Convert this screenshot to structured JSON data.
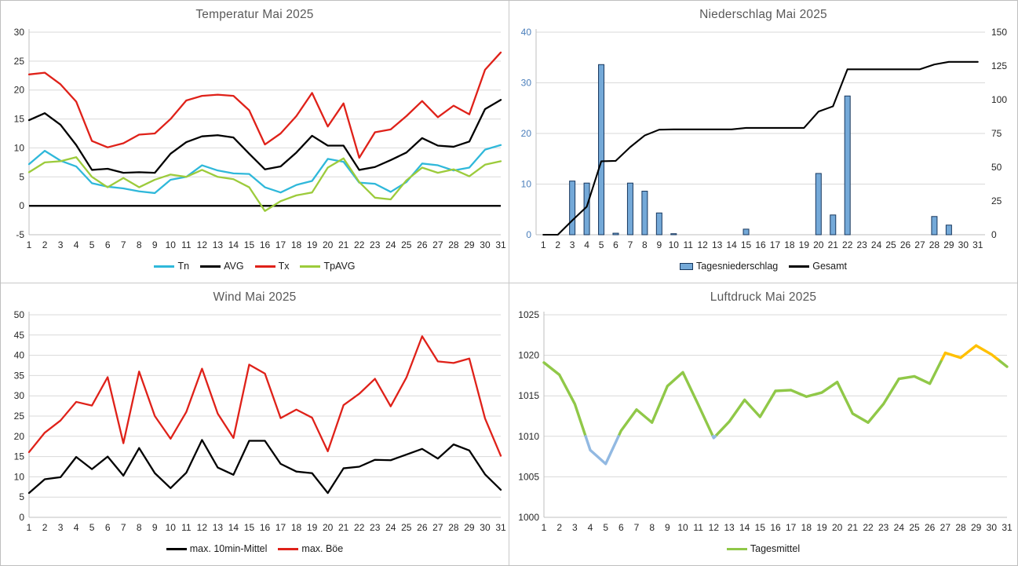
{
  "chart_data": [
    {
      "id": "temperatur",
      "type": "line",
      "title": "Temperatur Mai 2025",
      "categories": [
        1,
        2,
        3,
        4,
        5,
        6,
        7,
        8,
        9,
        10,
        11,
        12,
        13,
        14,
        15,
        16,
        17,
        18,
        19,
        20,
        21,
        22,
        23,
        24,
        25,
        26,
        27,
        28,
        29,
        30,
        31
      ],
      "ylim": [
        -5,
        30
      ],
      "yticks": [
        -5,
        0,
        5,
        10,
        15,
        20,
        25,
        30
      ],
      "x_on_ticks": true,
      "zero_line": true,
      "grid": true,
      "legend_position": "bottom",
      "series": [
        {
          "name": "Tn",
          "type": "line",
          "color": "#2FB8DA",
          "values": [
            7.2,
            9.5,
            7.8,
            6.8,
            3.9,
            3.3,
            3.0,
            2.5,
            2.2,
            4.5,
            5.0,
            7.0,
            6.1,
            5.6,
            5.5,
            3.2,
            2.3,
            3.6,
            4.3,
            8.1,
            7.6,
            4.0,
            3.8,
            2.4,
            4.1,
            7.3,
            7.0,
            6.1,
            6.6,
            9.7,
            10.5
          ]
        },
        {
          "name": "AVG",
          "type": "line",
          "color": "#000000",
          "values": [
            14.8,
            16.0,
            14.0,
            10.5,
            6.2,
            6.4,
            5.7,
            5.8,
            5.7,
            9.0,
            11.0,
            12.0,
            12.2,
            11.8,
            9.0,
            6.3,
            6.8,
            9.2,
            12.1,
            10.4,
            10.4,
            6.2,
            6.7,
            7.9,
            9.2,
            11.7,
            10.4,
            10.2,
            11.1,
            16.7,
            18.3
          ]
        },
        {
          "name": "Tx",
          "type": "line",
          "color": "#DF2119",
          "values": [
            22.7,
            23.0,
            21.0,
            18.0,
            11.2,
            10.1,
            10.8,
            12.3,
            12.5,
            15.0,
            18.2,
            19.0,
            19.2,
            19.0,
            16.5,
            10.6,
            12.5,
            15.5,
            19.5,
            13.7,
            17.7,
            8.3,
            12.7,
            13.2,
            15.5,
            18.1,
            15.3,
            17.3,
            15.8,
            23.5,
            26.5
          ]
        },
        {
          "name": "TpAVG",
          "type": "line",
          "color": "#9CCB3B",
          "values": [
            5.8,
            7.5,
            7.7,
            8.4,
            5.0,
            3.2,
            4.8,
            3.2,
            4.5,
            5.4,
            5.0,
            6.2,
            5.0,
            4.6,
            3.2,
            -0.9,
            0.8,
            1.8,
            2.3,
            6.6,
            8.2,
            4.1,
            1.4,
            1.1,
            4.4,
            6.6,
            5.7,
            6.3,
            5.1,
            7.1,
            7.7
          ]
        }
      ]
    },
    {
      "id": "niederschlag",
      "type": "combo",
      "title": "Niederschlag Mai 2025",
      "categories": [
        1,
        2,
        3,
        4,
        5,
        6,
        7,
        8,
        9,
        10,
        11,
        12,
        13,
        14,
        15,
        16,
        17,
        18,
        19,
        20,
        21,
        22,
        23,
        24,
        25,
        26,
        27,
        28,
        29,
        30,
        31
      ],
      "ylim": [
        0,
        40
      ],
      "yticks": [
        0,
        10,
        20,
        30,
        40
      ],
      "ytick_color": "#4A7EBB",
      "y2lim": [
        0,
        150
      ],
      "y2ticks": [
        0,
        25,
        50,
        75,
        100,
        125,
        150
      ],
      "x_on_ticks": false,
      "grid": true,
      "legend_position": "bottom",
      "series": [
        {
          "name": "Tagesniederschlag",
          "type": "bar",
          "color": "#74A9D8",
          "border": "#17375E",
          "values": [
            0,
            0,
            10.6,
            10.2,
            33.6,
            0.3,
            10.2,
            8.6,
            4.3,
            0.2,
            0,
            0,
            0,
            0,
            1.1,
            0,
            0,
            0,
            0,
            12.1,
            3.9,
            27.4,
            0,
            0,
            0,
            0,
            0,
            3.6,
            1.9,
            0,
            0
          ]
        },
        {
          "name": "Gesamt",
          "type": "line",
          "color": "#000000",
          "axis": "right",
          "values": [
            0,
            0,
            10.6,
            20.8,
            54.4,
            54.7,
            64.9,
            73.5,
            77.8,
            78.0,
            78.0,
            78.0,
            78.0,
            78.0,
            79.1,
            79.1,
            79.1,
            79.1,
            79.1,
            91.2,
            95.1,
            122.5,
            122.5,
            122.5,
            122.5,
            122.5,
            122.5,
            126.1,
            128.0,
            128.0,
            128.0
          ]
        }
      ]
    },
    {
      "id": "wind",
      "type": "line",
      "title": "Wind Mai 2025",
      "categories": [
        1,
        2,
        3,
        4,
        5,
        6,
        7,
        8,
        9,
        10,
        11,
        12,
        13,
        14,
        15,
        16,
        17,
        18,
        19,
        20,
        21,
        22,
        23,
        24,
        25,
        26,
        27,
        28,
        29,
        30,
        31
      ],
      "ylim": [
        0,
        50
      ],
      "yticks": [
        0,
        5,
        10,
        15,
        20,
        25,
        30,
        35,
        40,
        45,
        50
      ],
      "x_on_ticks": true,
      "grid": true,
      "legend_position": "bottom",
      "series": [
        {
          "name": "max. 10min-Mittel",
          "type": "line",
          "color": "#000000",
          "values": [
            6.0,
            9.4,
            9.9,
            14.9,
            11.9,
            15.0,
            10.3,
            17.1,
            10.9,
            7.2,
            11.0,
            19.1,
            12.3,
            10.5,
            18.9,
            18.9,
            13.2,
            11.3,
            10.9,
            6.0,
            12.1,
            12.5,
            14.2,
            14.1,
            15.5,
            16.9,
            14.5,
            18.0,
            16.5,
            10.6,
            6.8
          ]
        },
        {
          "name": "max. Böe",
          "type": "line",
          "color": "#DF2119",
          "values": [
            16.1,
            20.9,
            23.9,
            28.5,
            27.6,
            34.6,
            18.3,
            36.0,
            25.0,
            19.4,
            26.0,
            36.7,
            25.6,
            19.6,
            37.7,
            35.5,
            24.5,
            26.6,
            24.6,
            16.3,
            27.7,
            30.5,
            34.2,
            27.4,
            34.5,
            44.7,
            38.5,
            38.1,
            39.2,
            24.4,
            15.2
          ]
        }
      ]
    },
    {
      "id": "luftdruck",
      "type": "line",
      "title": "Luftdruck Mai 2025",
      "categories": [
        1,
        2,
        3,
        4,
        5,
        6,
        7,
        8,
        9,
        10,
        11,
        12,
        13,
        14,
        15,
        16,
        17,
        18,
        19,
        20,
        21,
        22,
        23,
        24,
        25,
        26,
        27,
        28,
        29,
        30,
        31
      ],
      "ylim": [
        1000,
        1025
      ],
      "yticks": [
        1000,
        1005,
        1010,
        1015,
        1020,
        1025
      ],
      "x_on_ticks": true,
      "grid": true,
      "legend_position": "bottom",
      "series": [
        {
          "name": "Tagesmittel",
          "type": "line",
          "color": "#90C848",
          "color_rules": {
            "low_threshold": 1010,
            "low_color": "#92B9E2",
            "high_threshold": 1019.5,
            "high_color": "#FFC000"
          },
          "values": [
            1019.1,
            1017.6,
            1014.0,
            1008.3,
            1006.6,
            1010.7,
            1013.3,
            1011.7,
            1016.2,
            1017.9,
            1013.9,
            1009.8,
            1011.8,
            1014.5,
            1012.4,
            1015.6,
            1015.7,
            1014.9,
            1015.4,
            1016.7,
            1012.8,
            1011.7,
            1014.0,
            1017.1,
            1017.4,
            1016.5,
            1020.3,
            1019.7,
            1021.2,
            1020.1,
            1018.6
          ]
        }
      ]
    }
  ],
  "style": {
    "grid_color": "#D9D9D9",
    "axis_color": "#BFBFBF",
    "tick_label_color": "#262626",
    "title_color": "#595959"
  }
}
